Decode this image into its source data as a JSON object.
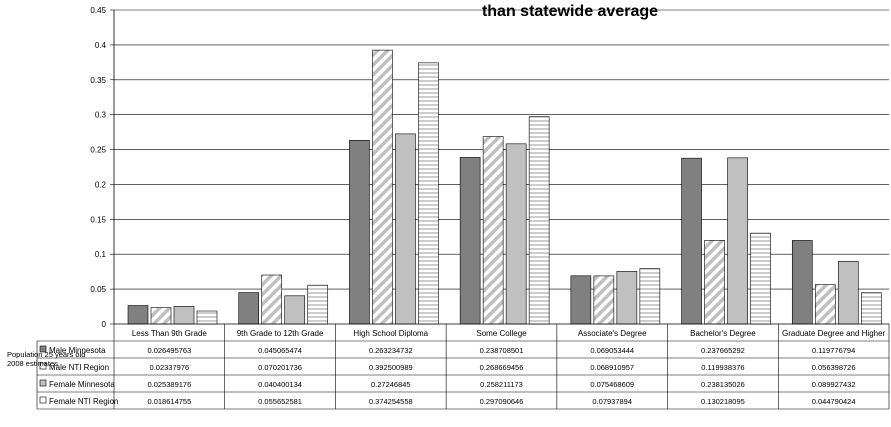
{
  "chart_data": {
    "type": "bar",
    "title": "than statewide average",
    "row_header_lines": [
      "Population 25 years old",
      "2008 estimates"
    ],
    "categories": [
      "Less Than 9th Grade",
      "9th Grade to 12th Grade",
      "High School Diploma",
      "Some College",
      "Associate's Degree",
      "Bachelor's Degree",
      "Graduate Degree and Higher"
    ],
    "ylim": [
      0,
      0.45
    ],
    "yticks": [
      "0",
      "0.05",
      "0.1",
      "0.15",
      "0.2",
      "0.25",
      "0.3",
      "0.35",
      "0.4",
      "0.45"
    ],
    "grid": true,
    "series": [
      {
        "name": "Male Minnesota",
        "color": "#808080",
        "pattern": "solid",
        "values": [
          0.026495763,
          0.045065474,
          0.263234732,
          0.238708501,
          0.069053444,
          0.237665292,
          0.119776794
        ],
        "labels": [
          "0.026495763",
          "0.045065474",
          "0.263234732",
          "0.238708501",
          "0.069053444",
          "0.237665292",
          "0.119776794"
        ]
      },
      {
        "name": "Male NTI Region",
        "color": "#bfbfbf",
        "pattern": "diagonal",
        "values": [
          0.02337976,
          0.070201736,
          0.392500989,
          0.268669456,
          0.068910957,
          0.119938376,
          0.056398726
        ],
        "labels": [
          "0.02337976",
          "0.070201736",
          "0.392500989",
          "0.268669456",
          "0.068910957",
          "0.119938376",
          "0.056398726"
        ]
      },
      {
        "name": "Female Minnesota",
        "color": "#c0c0c0",
        "pattern": "solid",
        "values": [
          0.025389176,
          0.040400134,
          0.27246845,
          0.258211173,
          0.075468609,
          0.238135026,
          0.089927432
        ],
        "labels": [
          "0.025389176",
          "0.040400134",
          "0.27246845",
          "0.258211173",
          "0.075468609",
          "0.238135026",
          "0.089927432"
        ]
      },
      {
        "name": "Female NTI Region",
        "color": "#d0d0d0",
        "pattern": "horizontal",
        "values": [
          0.018614755,
          0.055652581,
          0.374254558,
          0.297090646,
          0.07937894,
          0.130218095,
          0.044790424
        ],
        "labels": [
          "0.018614755",
          "0.055652581",
          "0.374254558",
          "0.297090646",
          "0.07937894",
          "0.130218095",
          "0.044790424"
        ]
      }
    ]
  }
}
